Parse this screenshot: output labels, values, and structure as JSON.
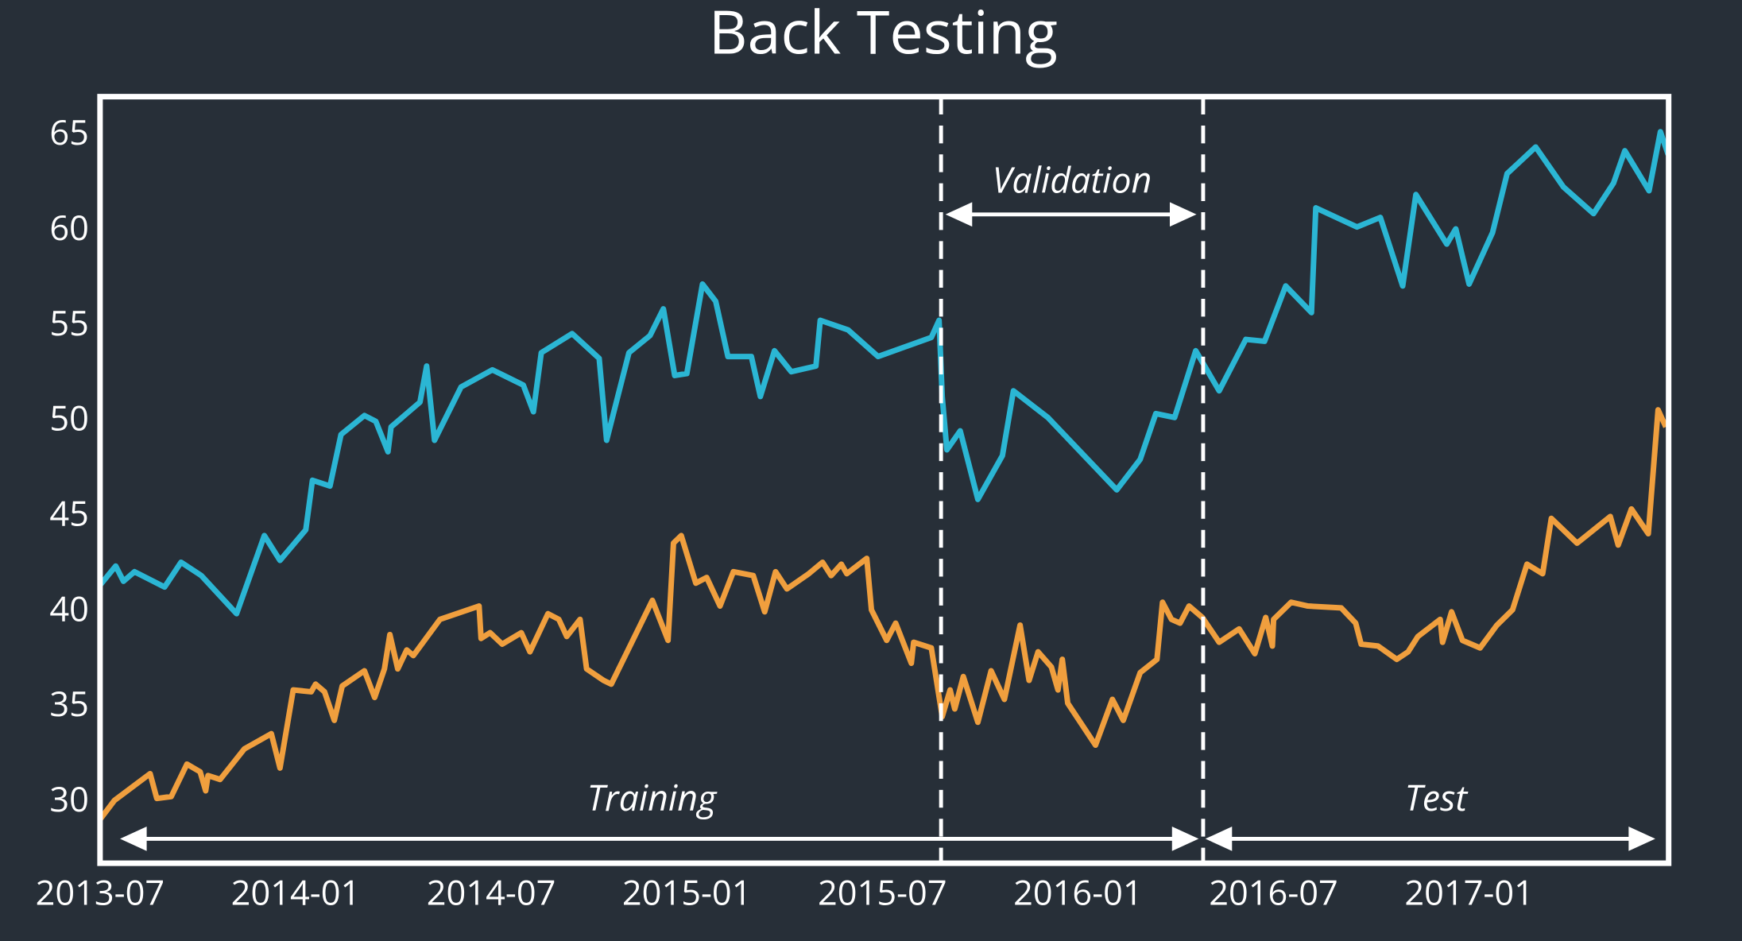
{
  "chart_data": {
    "type": "line",
    "title": "Back Testing",
    "xlim": [
      2013.5,
      2017.51
    ],
    "ylim": [
      26.8,
      67.04
    ],
    "xticks": [
      {
        "value": 2013.5,
        "label": "2013-07"
      },
      {
        "value": 2014.0,
        "label": "2014-01"
      },
      {
        "value": 2014.5,
        "label": "2014-07"
      },
      {
        "value": 2015.0,
        "label": "2015-01"
      },
      {
        "value": 2015.5,
        "label": "2015-07"
      },
      {
        "value": 2016.0,
        "label": "2016-01"
      },
      {
        "value": 2016.5,
        "label": "2016-07"
      },
      {
        "value": 2017.0,
        "label": "2017-01"
      }
    ],
    "yticks": [
      30,
      35,
      40,
      45,
      50,
      55,
      60,
      65
    ],
    "grid": false,
    "splits": [
      2015.65,
      2016.32
    ],
    "annotations": {
      "training": "Training",
      "validation": "Validation",
      "test": "Test"
    },
    "series": [
      {
        "color": "#2bb6d4",
        "x": [
          2013.5,
          2013.54,
          2013.56,
          2013.588,
          2013.665,
          2013.707,
          2013.759,
          2013.849,
          2013.92,
          2013.96,
          2014.026,
          2014.043,
          2014.088,
          2014.116,
          2014.176,
          2014.205,
          2014.236,
          2014.244,
          2014.318,
          2014.335,
          2014.355,
          2014.423,
          2014.503,
          2014.582,
          2014.608,
          2014.628,
          2014.707,
          2014.776,
          2014.795,
          2014.852,
          2014.906,
          2014.94,
          2014.969,
          2015.0,
          2015.04,
          2015.074,
          2015.105,
          2015.165,
          2015.188,
          2015.224,
          2015.267,
          2015.33,
          2015.341,
          2015.412,
          2015.489,
          2015.625,
          2015.645,
          2015.653,
          2015.665,
          2015.699,
          2015.744,
          2015.807,
          2015.835,
          2015.923,
          2016.099,
          2016.159,
          2016.199,
          2016.247,
          2016.301,
          2016.361,
          2016.429,
          2016.477,
          2016.531,
          2016.597,
          2016.608,
          2016.713,
          2016.773,
          2016.83,
          2016.864,
          2016.943,
          2016.966,
          2017.0,
          2017.06,
          2017.097,
          2017.17,
          2017.241,
          2017.318,
          2017.369,
          2017.398,
          2017.46,
          2017.489,
          2017.509
        ],
        "values": [
          41.4,
          42.4,
          41.6,
          42.1,
          41.3,
          42.6,
          41.9,
          39.9,
          44.0,
          42.7,
          44.3,
          46.9,
          46.6,
          49.3,
          50.3,
          50.0,
          48.4,
          49.7,
          51.0,
          52.9,
          49.0,
          51.8,
          52.7,
          51.9,
          50.5,
          53.6,
          54.6,
          53.3,
          49.0,
          53.6,
          54.5,
          55.9,
          52.4,
          52.5,
          57.2,
          56.3,
          53.4,
          53.4,
          51.3,
          53.7,
          52.6,
          52.9,
          55.3,
          54.8,
          53.4,
          54.4,
          55.3,
          51.3,
          48.5,
          49.5,
          45.9,
          48.2,
          51.6,
          50.2,
          46.4,
          48.0,
          50.4,
          50.2,
          53.7,
          51.6,
          54.3,
          54.2,
          57.1,
          55.7,
          61.2,
          60.2,
          60.7,
          57.1,
          61.9,
          59.3,
          60.1,
          57.2,
          59.9,
          63.0,
          64.4,
          62.3,
          60.9,
          62.5,
          64.2,
          62.1,
          65.2,
          64.0
        ]
      },
      {
        "color": "#f09f3e",
        "x": [
          2013.5,
          2013.537,
          2013.628,
          2013.645,
          2013.682,
          2013.722,
          2013.756,
          2013.77,
          2013.776,
          2013.807,
          2013.869,
          2013.938,
          2013.96,
          2013.994,
          2014.04,
          2014.051,
          2014.074,
          2014.099,
          2014.119,
          2014.176,
          2014.202,
          2014.227,
          2014.241,
          2014.261,
          2014.284,
          2014.301,
          2014.369,
          2014.469,
          2014.474,
          2014.497,
          2014.528,
          2014.577,
          2014.599,
          2014.645,
          2014.673,
          2014.693,
          2014.727,
          2014.744,
          2014.787,
          2014.807,
          2014.912,
          2014.952,
          2014.966,
          2014.986,
          2015.023,
          2015.051,
          2015.085,
          2015.119,
          2015.17,
          2015.199,
          2015.227,
          2015.256,
          2015.312,
          2015.347,
          2015.369,
          2015.395,
          2015.409,
          2015.46,
          2015.472,
          2015.511,
          2015.534,
          2015.574,
          2015.58,
          2015.625,
          2015.653,
          2015.673,
          2015.685,
          2015.707,
          2015.744,
          2015.778,
          2015.812,
          2015.852,
          2015.875,
          2015.898,
          2015.932,
          2015.949,
          2015.96,
          2015.974,
          2016.045,
          2016.088,
          2016.116,
          2016.159,
          2016.202,
          2016.216,
          2016.239,
          2016.261,
          2016.284,
          2016.318,
          2016.361,
          2016.412,
          2016.452,
          2016.48,
          2016.497,
          2016.5,
          2016.545,
          2016.588,
          2016.673,
          2016.71,
          2016.724,
          2016.767,
          2016.815,
          2016.844,
          2016.869,
          2016.926,
          2016.932,
          2016.955,
          2016.983,
          2017.028,
          2017.071,
          2017.111,
          2017.148,
          2017.188,
          2017.21,
          2017.276,
          2017.361,
          2017.381,
          2017.415,
          2017.458,
          2017.483,
          2017.503
        ],
        "values": [
          29.1,
          30.1,
          31.5,
          30.2,
          30.3,
          32.0,
          31.6,
          30.6,
          31.4,
          31.2,
          32.8,
          33.6,
          31.8,
          35.9,
          35.8,
          36.2,
          35.8,
          34.3,
          36.1,
          36.9,
          35.5,
          37.0,
          38.8,
          37.0,
          38.0,
          37.7,
          39.6,
          40.3,
          38.6,
          38.9,
          38.3,
          38.9,
          37.9,
          39.9,
          39.6,
          38.7,
          39.6,
          37.0,
          36.4,
          36.2,
          40.6,
          38.5,
          43.6,
          44.0,
          41.5,
          41.8,
          40.3,
          42.1,
          41.9,
          40.0,
          42.1,
          41.2,
          42.0,
          42.6,
          41.9,
          42.5,
          42.0,
          42.8,
          40.1,
          38.5,
          39.4,
          37.3,
          38.4,
          38.1,
          34.5,
          35.9,
          34.9,
          36.6,
          34.2,
          36.9,
          35.4,
          39.3,
          36.4,
          37.9,
          37.1,
          35.9,
          37.5,
          35.2,
          33.0,
          35.4,
          34.3,
          36.8,
          37.5,
          40.5,
          39.6,
          39.4,
          40.3,
          39.7,
          38.4,
          39.1,
          37.8,
          39.7,
          38.2,
          39.6,
          40.5,
          40.3,
          40.2,
          39.4,
          38.3,
          38.2,
          37.5,
          37.9,
          38.7,
          39.6,
          38.4,
          40.0,
          38.5,
          38.1,
          39.3,
          40.1,
          42.5,
          42.0,
          44.9,
          43.6,
          45.0,
          43.5,
          45.4,
          44.1,
          50.6,
          49.7
        ]
      }
    ]
  }
}
